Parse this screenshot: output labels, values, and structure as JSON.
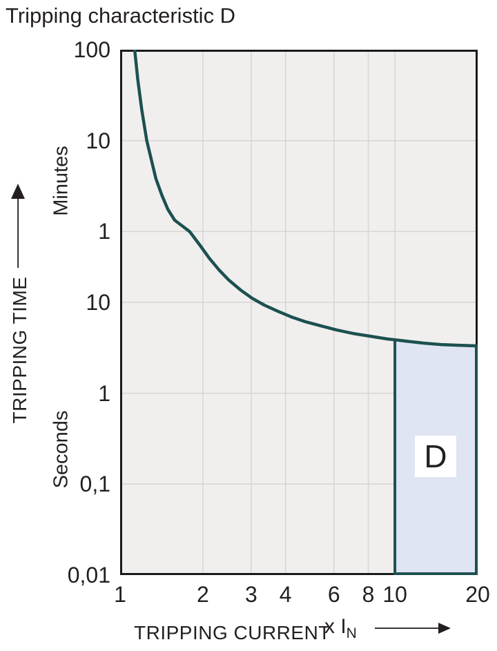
{
  "title": "Tripping characteristic D",
  "colors": {
    "curve": "#1c5050",
    "region_fill": "#dfe5f3",
    "region_border": "#1c5050",
    "plot_background": "#f0efed",
    "grid": "#d6d5d3",
    "axis_border": "#1a1a1a",
    "text": "#231f20",
    "d_label_background": "#ffffff"
  },
  "icons": {
    "y_axis_arrow": "up-arrow",
    "x_axis_arrow": "right-arrow"
  },
  "chart_data": {
    "type": "line",
    "title": "Tripping characteristic D",
    "x_label": "TRIPPING CURRENT",
    "x_unit_prefix": "x I",
    "x_unit_sub": "N",
    "y_label": "TRIPPING TIME",
    "y_unit_upper": "Minutes",
    "y_unit_lower": "Seconds",
    "x_scale": "log",
    "y_scale": "log",
    "x_range": [
      1,
      20
    ],
    "y_range_seconds": [
      0.01,
      6000
    ],
    "grid": true,
    "x_gridlines": [
      2,
      3,
      4,
      6,
      8,
      10
    ],
    "y_gridlines_seconds": [
      600,
      60,
      10,
      1,
      0.1
    ],
    "x_ticks": [
      {
        "label": "1",
        "I": 1
      },
      {
        "label": "2",
        "I": 2
      },
      {
        "label": "3",
        "I": 3
      },
      {
        "label": "4",
        "I": 4
      },
      {
        "label": "6",
        "I": 6
      },
      {
        "label": "8",
        "I": 8
      },
      {
        "label": "10",
        "I": 10
      },
      {
        "label": "20",
        "I": 20
      }
    ],
    "y_ticks": [
      {
        "label": "100",
        "t": 6000
      },
      {
        "label": "10",
        "t": 600
      },
      {
        "label": "1",
        "t": 60
      },
      {
        "label": "10",
        "t": 10
      },
      {
        "label": "1",
        "t": 1
      },
      {
        "label": "0,1",
        "t": 0.1
      },
      {
        "label": "0,01",
        "t": 0.01
      }
    ],
    "series": [
      {
        "name": "D tripping characteristic curve",
        "points_I_multiple_t_seconds": [
          [
            1.13,
            6000
          ],
          [
            1.16,
            2780
          ],
          [
            1.2,
            1290
          ],
          [
            1.25,
            600
          ],
          [
            1.3,
            366
          ],
          [
            1.35,
            228
          ],
          [
            1.42,
            150
          ],
          [
            1.49,
            106
          ],
          [
            1.58,
            80
          ],
          [
            1.68,
            69.5
          ],
          [
            1.79,
            60
          ],
          [
            1.95,
            42.6
          ],
          [
            2.11,
            30.6
          ],
          [
            2.29,
            22.7
          ],
          [
            2.49,
            17.5
          ],
          [
            2.74,
            13.7
          ],
          [
            3.02,
            11.1
          ],
          [
            3.35,
            9.3
          ],
          [
            3.74,
            8.0
          ],
          [
            4.2,
            6.9
          ],
          [
            4.74,
            6.1
          ],
          [
            5.38,
            5.5
          ],
          [
            6.15,
            4.95
          ],
          [
            7.06,
            4.54
          ],
          [
            8.12,
            4.24
          ],
          [
            9.38,
            3.95
          ],
          [
            10.0,
            3.87
          ],
          [
            10.9,
            3.75
          ],
          [
            12.7,
            3.56
          ],
          [
            14.7,
            3.43
          ],
          [
            17.0,
            3.37
          ],
          [
            20.0,
            3.32
          ]
        ]
      }
    ],
    "region": {
      "label": "D",
      "I_start": 10,
      "I_end": 20,
      "t_bottom_seconds": 0.01,
      "t_top": "curve"
    }
  }
}
